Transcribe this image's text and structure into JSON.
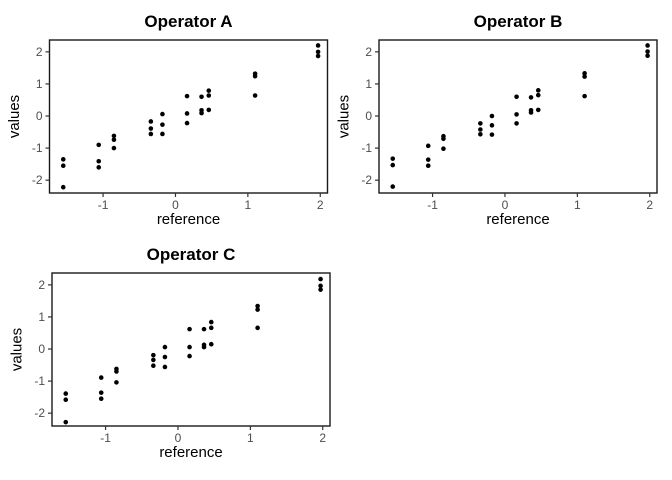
{
  "figure": {
    "background": "#ffffff",
    "layout": "2x2 grid, bottom-right cell empty"
  },
  "style": {
    "panel_background": "#ffffff",
    "panel_border_color": "#1a1a1a",
    "tick_color": "#333333",
    "tick_label_color": "#4d4d4d",
    "axis_title_color": "#000000",
    "title_color": "#000000",
    "point_color": "#000000"
  },
  "chart_data": [
    {
      "type": "scatter",
      "title": "Operator A",
      "xlabel": "reference",
      "ylabel": "values",
      "xlim": [
        -1.74,
        2.1
      ],
      "ylim": [
        -2.4,
        2.37
      ],
      "x_ticks": [
        -1,
        0,
        1,
        2
      ],
      "y_ticks": [
        -2,
        -1,
        0,
        1,
        2
      ],
      "grid": false,
      "legend_position": "none",
      "point_color": "#000000",
      "points": [
        [
          -1.55,
          -1.35
        ],
        [
          -1.55,
          -1.55
        ],
        [
          -1.55,
          -2.22
        ],
        [
          -1.06,
          -0.9
        ],
        [
          -1.06,
          -1.41
        ],
        [
          -1.06,
          -1.6
        ],
        [
          -0.85,
          -0.62
        ],
        [
          -0.85,
          -0.74
        ],
        [
          -0.85,
          -1.0
        ],
        [
          -0.34,
          -0.17
        ],
        [
          -0.34,
          -0.39
        ],
        [
          -0.34,
          -0.56
        ],
        [
          -0.18,
          0.06
        ],
        [
          -0.18,
          -0.27
        ],
        [
          -0.18,
          -0.56
        ],
        [
          0.16,
          0.62
        ],
        [
          0.16,
          0.08
        ],
        [
          0.16,
          -0.22
        ],
        [
          0.36,
          0.6
        ],
        [
          0.36,
          0.18
        ],
        [
          0.36,
          0.09
        ],
        [
          0.46,
          0.79
        ],
        [
          0.46,
          0.64
        ],
        [
          0.46,
          0.19
        ],
        [
          1.1,
          1.32
        ],
        [
          1.1,
          1.24
        ],
        [
          1.1,
          0.64
        ],
        [
          1.97,
          2.2
        ],
        [
          1.97,
          2.0
        ],
        [
          1.97,
          1.87
        ]
      ]
    },
    {
      "type": "scatter",
      "title": "Operator B",
      "xlabel": "reference",
      "ylabel": "values",
      "xlim": [
        -1.74,
        2.1
      ],
      "ylim": [
        -2.4,
        2.37
      ],
      "x_ticks": [
        -1,
        0,
        1,
        2
      ],
      "y_ticks": [
        -2,
        -1,
        0,
        1,
        2
      ],
      "grid": false,
      "legend_position": "none",
      "point_color": "#000000",
      "points": [
        [
          -1.55,
          -1.33
        ],
        [
          -1.55,
          -1.53
        ],
        [
          -1.55,
          -2.2
        ],
        [
          -1.06,
          -0.93
        ],
        [
          -1.06,
          -1.36
        ],
        [
          -1.06,
          -1.55
        ],
        [
          -0.85,
          -0.63
        ],
        [
          -0.85,
          -0.71
        ],
        [
          -0.85,
          -1.02
        ],
        [
          -0.34,
          -0.23
        ],
        [
          -0.34,
          -0.42
        ],
        [
          -0.34,
          -0.57
        ],
        [
          -0.18,
          0.0
        ],
        [
          -0.18,
          -0.29
        ],
        [
          -0.18,
          -0.58
        ],
        [
          0.16,
          0.6
        ],
        [
          0.16,
          0.05
        ],
        [
          0.16,
          -0.23
        ],
        [
          0.36,
          0.58
        ],
        [
          0.36,
          0.18
        ],
        [
          0.36,
          0.11
        ],
        [
          0.46,
          0.8
        ],
        [
          0.46,
          0.65
        ],
        [
          0.46,
          0.19
        ],
        [
          1.1,
          1.33
        ],
        [
          1.1,
          1.23
        ],
        [
          1.1,
          0.62
        ],
        [
          1.97,
          2.2
        ],
        [
          1.97,
          2.01
        ],
        [
          1.97,
          1.88
        ]
      ]
    },
    {
      "type": "scatter",
      "title": "Operator C",
      "xlabel": "reference",
      "ylabel": "values",
      "xlim": [
        -1.74,
        2.1
      ],
      "ylim": [
        -2.4,
        2.37
      ],
      "x_ticks": [
        -1,
        0,
        1,
        2
      ],
      "y_ticks": [
        -2,
        -1,
        0,
        1,
        2
      ],
      "grid": false,
      "legend_position": "none",
      "point_color": "#000000",
      "points": [
        [
          -1.55,
          -1.39
        ],
        [
          -1.55,
          -1.58
        ],
        [
          -1.55,
          -2.28
        ],
        [
          -1.06,
          -0.89
        ],
        [
          -1.06,
          -1.36
        ],
        [
          -1.06,
          -1.55
        ],
        [
          -0.85,
          -0.62
        ],
        [
          -0.85,
          -0.7
        ],
        [
          -0.85,
          -1.04
        ],
        [
          -0.34,
          -0.19
        ],
        [
          -0.34,
          -0.34
        ],
        [
          -0.34,
          -0.52
        ],
        [
          -0.18,
          0.06
        ],
        [
          -0.18,
          -0.25
        ],
        [
          -0.18,
          -0.56
        ],
        [
          0.16,
          0.62
        ],
        [
          0.16,
          0.06
        ],
        [
          0.16,
          -0.22
        ],
        [
          0.36,
          0.62
        ],
        [
          0.36,
          0.13
        ],
        [
          0.36,
          0.06
        ],
        [
          0.46,
          0.84
        ],
        [
          0.46,
          0.66
        ],
        [
          0.46,
          0.15
        ],
        [
          1.1,
          1.34
        ],
        [
          1.1,
          1.23
        ],
        [
          1.1,
          0.66
        ],
        [
          1.97,
          2.18
        ],
        [
          1.97,
          1.97
        ],
        [
          1.97,
          1.85
        ]
      ]
    }
  ]
}
